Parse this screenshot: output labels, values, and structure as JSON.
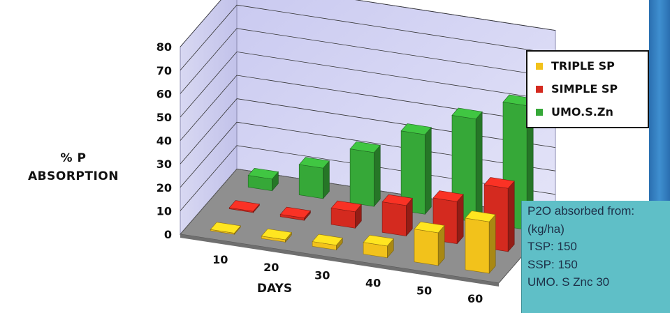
{
  "chart_data": {
    "type": "bar",
    "style": "3d-grouped-depth",
    "categories": [
      "10",
      "20",
      "30",
      "40",
      "50",
      "60"
    ],
    "series": [
      {
        "name": "TRIPLE SP",
        "color": "#f2c21b",
        "values": [
          0.5,
          1,
          2,
          5,
          14,
          22
        ]
      },
      {
        "name": "SIMPLE SP",
        "color": "#d42a1f",
        "values": [
          0.5,
          1,
          7,
          13,
          18,
          27
        ]
      },
      {
        "name": "UMO.S.Zn",
        "color": "#36a838",
        "values": [
          5,
          13,
          23,
          34,
          44,
          53
        ]
      }
    ],
    "ylim": [
      0,
      80
    ],
    "yticks": [
      "0",
      "10",
      "20",
      "30",
      "40",
      "50",
      "60",
      "70",
      "80"
    ],
    "ylabel": [
      "% P",
      "ABSORPTION"
    ],
    "xlabel": "DAYS",
    "legend_position": "right",
    "grid": true
  },
  "info_box": {
    "lines": [
      "P2O absorbed from:",
      "(kg/ha)",
      "TSP: 150",
      "SSP: 150",
      "UMO. S Znc 30"
    ]
  }
}
